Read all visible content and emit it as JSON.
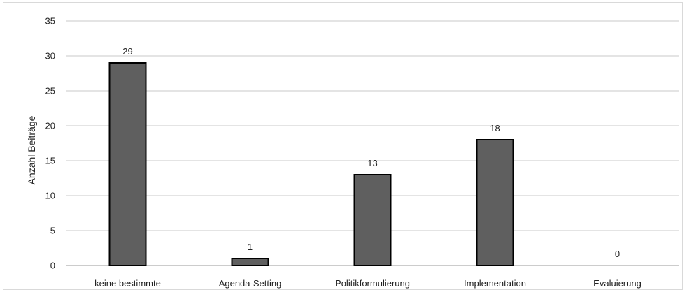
{
  "chart_data": {
    "type": "bar",
    "title": "",
    "xlabel": "",
    "ylabel": "Anzahl Beiträge",
    "categories": [
      "keine bestimmte",
      "Agenda-Setting",
      "Politikformulierung",
      "Implementation",
      "Evaluierung"
    ],
    "values": [
      29,
      1,
      13,
      18,
      0
    ],
    "data_labels": [
      "29",
      "1",
      "13",
      "18",
      "0"
    ],
    "ylim": [
      0,
      35
    ],
    "yticks": [
      0,
      5,
      10,
      15,
      20,
      25,
      30,
      35
    ],
    "grid": true,
    "legend": "none",
    "colors": {
      "bar_fill": "#5f5f5f",
      "bar_stroke": "#000000",
      "grid": "#c8c8c8",
      "axis": "#9a9a9a"
    }
  }
}
